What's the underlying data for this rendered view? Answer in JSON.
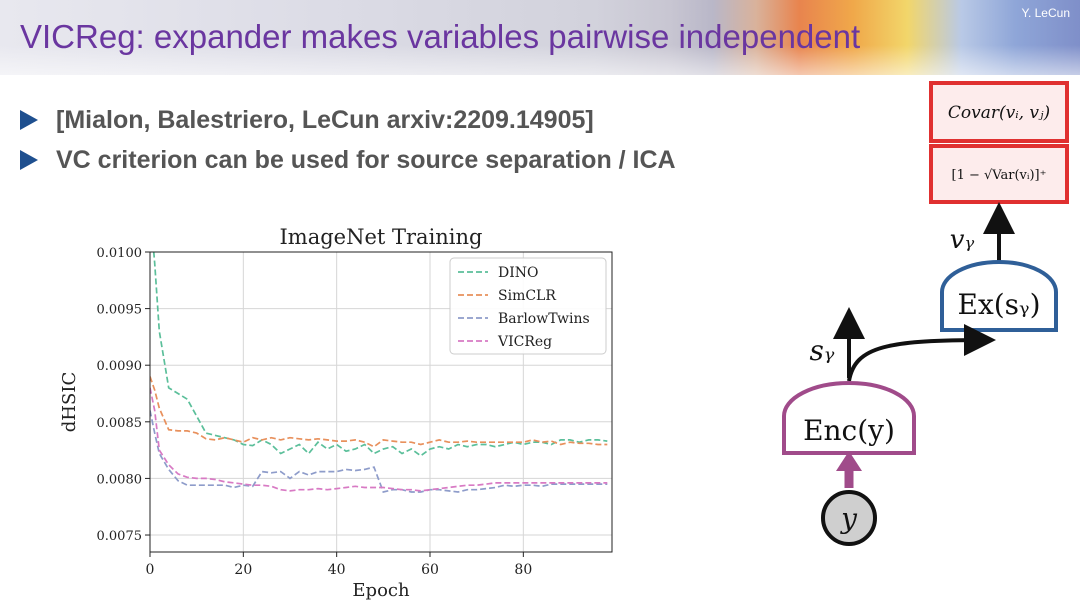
{
  "slide": {
    "title": "VICReg: expander makes variables pairwise independent",
    "author": "Y. LeCun",
    "bullets": [
      "[Mialon, Balestriero, LeCun arxiv:2209.14905]",
      "VC criterion can be used for source separation / ICA"
    ]
  },
  "diagram": {
    "covar_label": "Covar(vᵢ, vⱼ)",
    "var_label": "[1 − √Var(vᵢ)]⁺",
    "vy_label": "vᵧ",
    "expander_label": "Ex(sᵧ)",
    "sy_label": "sᵧ",
    "encoder_label": "Enc(y)",
    "input_label": "y",
    "colors": {
      "red": "#e03030",
      "blue": "#2f5f98",
      "purple": "#a04b8a"
    }
  },
  "chart_data": {
    "type": "line",
    "title": "ImageNet Training",
    "xlabel": "Epoch",
    "ylabel": "dHSIC",
    "xlim": [
      0,
      99
    ],
    "ylim": [
      0.00735,
      0.01
    ],
    "xticks": [
      "0",
      "20",
      "40",
      "60",
      "80"
    ],
    "yticks": [
      "0.0075",
      "0.0080",
      "0.0085",
      "0.0090",
      "0.0095",
      "0.0100"
    ],
    "grid": true,
    "legend_position": "top-right",
    "series": [
      {
        "name": "DINO",
        "color": "#5bbf9a",
        "x": [
          0,
          1,
          2,
          4,
          6,
          8,
          10,
          12,
          14,
          16,
          18,
          20,
          22,
          24,
          26,
          28,
          30,
          32,
          34,
          36,
          38,
          40,
          42,
          44,
          46,
          48,
          50,
          52,
          54,
          56,
          58,
          60,
          62,
          64,
          66,
          68,
          70,
          72,
          74,
          76,
          78,
          80,
          82,
          84,
          86,
          88,
          90,
          92,
          94,
          96,
          98
        ],
        "y": [
          0.0104,
          0.0099,
          0.0093,
          0.0088,
          0.00875,
          0.0087,
          0.00855,
          0.0084,
          0.00838,
          0.00836,
          0.00834,
          0.0083,
          0.00829,
          0.00834,
          0.0083,
          0.00822,
          0.00826,
          0.0083,
          0.00822,
          0.00832,
          0.00826,
          0.0083,
          0.00824,
          0.00826,
          0.0083,
          0.00822,
          0.00826,
          0.00828,
          0.00822,
          0.00826,
          0.0082,
          0.00826,
          0.00828,
          0.00826,
          0.0083,
          0.00828,
          0.0083,
          0.0083,
          0.00828,
          0.0083,
          0.00832,
          0.0083,
          0.00832,
          0.00832,
          0.0083,
          0.00834,
          0.00834,
          0.00832,
          0.00834,
          0.00834,
          0.00833
        ]
      },
      {
        "name": "SimCLR",
        "color": "#e8905c",
        "x": [
          0,
          1,
          2,
          4,
          6,
          8,
          10,
          12,
          14,
          16,
          18,
          20,
          22,
          24,
          26,
          28,
          30,
          32,
          34,
          36,
          38,
          40,
          42,
          44,
          46,
          48,
          50,
          52,
          54,
          56,
          58,
          60,
          62,
          64,
          66,
          68,
          70,
          72,
          74,
          76,
          78,
          80,
          82,
          84,
          86,
          88,
          90,
          92,
          94,
          96,
          98
        ],
        "y": [
          0.0089,
          0.00878,
          0.00862,
          0.00843,
          0.00842,
          0.00842,
          0.0084,
          0.00835,
          0.00834,
          0.00836,
          0.00834,
          0.00832,
          0.00836,
          0.00834,
          0.00836,
          0.00834,
          0.00836,
          0.00835,
          0.00834,
          0.00835,
          0.00834,
          0.00833,
          0.00833,
          0.00834,
          0.00832,
          0.00828,
          0.00834,
          0.00833,
          0.00832,
          0.00832,
          0.0083,
          0.00832,
          0.00834,
          0.00832,
          0.00832,
          0.00833,
          0.00832,
          0.00832,
          0.00832,
          0.00832,
          0.00832,
          0.00832,
          0.00834,
          0.00832,
          0.00833,
          0.0083,
          0.00832,
          0.00831,
          0.00831,
          0.0083,
          0.0083
        ]
      },
      {
        "name": "BarlowTwins",
        "color": "#8e9cca",
        "x": [
          0,
          1,
          2,
          4,
          6,
          8,
          10,
          12,
          14,
          16,
          18,
          20,
          22,
          24,
          26,
          28,
          30,
          32,
          34,
          36,
          38,
          40,
          42,
          44,
          46,
          48,
          50,
          52,
          54,
          56,
          58,
          60,
          62,
          64,
          66,
          68,
          70,
          72,
          74,
          76,
          78,
          80,
          82,
          84,
          86,
          88,
          90,
          92,
          94,
          96,
          98
        ],
        "y": [
          0.0086,
          0.0084,
          0.00822,
          0.00808,
          0.00798,
          0.00794,
          0.00794,
          0.00794,
          0.00794,
          0.00794,
          0.00792,
          0.00794,
          0.00793,
          0.00806,
          0.00805,
          0.00806,
          0.008,
          0.00806,
          0.00803,
          0.00806,
          0.00806,
          0.00806,
          0.00808,
          0.00807,
          0.00808,
          0.0081,
          0.00788,
          0.0079,
          0.0079,
          0.00788,
          0.00788,
          0.0079,
          0.0079,
          0.00789,
          0.00788,
          0.0079,
          0.0079,
          0.00791,
          0.00792,
          0.00794,
          0.00793,
          0.00794,
          0.00794,
          0.00793,
          0.00795,
          0.00795,
          0.00795,
          0.00795,
          0.00795,
          0.00795,
          0.00795
        ]
      },
      {
        "name": "VICReg",
        "color": "#d87ac4",
        "x": [
          0,
          1,
          2,
          4,
          6,
          8,
          10,
          12,
          14,
          16,
          18,
          20,
          22,
          24,
          26,
          28,
          30,
          32,
          34,
          36,
          38,
          40,
          42,
          44,
          46,
          48,
          50,
          52,
          54,
          56,
          58,
          60,
          62,
          64,
          66,
          68,
          70,
          72,
          74,
          76,
          78,
          80,
          82,
          84,
          86,
          88,
          90,
          92,
          94,
          96,
          98
        ],
        "y": [
          0.0088,
          0.0086,
          0.00825,
          0.00812,
          0.00804,
          0.00801,
          0.008,
          0.008,
          0.00799,
          0.00797,
          0.00796,
          0.00795,
          0.00794,
          0.00794,
          0.00793,
          0.0079,
          0.00789,
          0.0079,
          0.0079,
          0.00791,
          0.0079,
          0.00791,
          0.00792,
          0.00793,
          0.00792,
          0.00792,
          0.00792,
          0.00791,
          0.0079,
          0.0079,
          0.00789,
          0.0079,
          0.00791,
          0.00792,
          0.00793,
          0.00794,
          0.00794,
          0.00795,
          0.00796,
          0.00796,
          0.00796,
          0.00796,
          0.00796,
          0.00796,
          0.00796,
          0.00796,
          0.00796,
          0.00796,
          0.00796,
          0.00796,
          0.00796
        ]
      }
    ]
  }
}
